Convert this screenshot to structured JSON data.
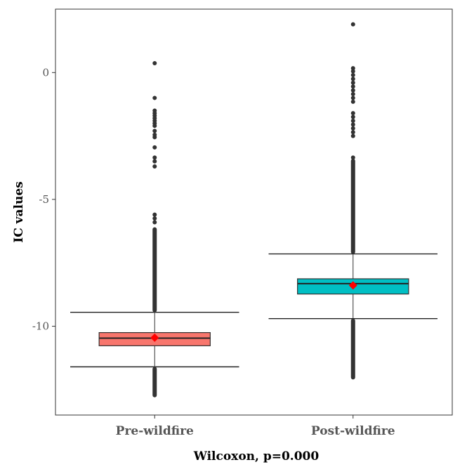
{
  "chart_data": {
    "type": "box",
    "title": "",
    "xlabel": "Wilcoxon, p=0.000",
    "ylabel": "IC values",
    "ylim": [
      -13.5,
      2.5
    ],
    "yticks": [
      0,
      -5,
      -10
    ],
    "ytick_labels": [
      "0",
      "-5",
      "-10"
    ],
    "categories": [
      "Pre-wildfire",
      "Post-wildfire"
    ],
    "grid": false,
    "series": [
      {
        "category": "Pre-wildfire",
        "color": "#f8766d",
        "q1": -10.77,
        "median": -10.47,
        "q3": -10.25,
        "whisker_low": -11.6,
        "whisker_high": -9.45,
        "mean": -10.45,
        "outliers_high_dense_range": [
          -9.45,
          -6.1
        ],
        "outliers_high": [
          0.37,
          -1.0,
          -1.5,
          -1.6,
          -1.7,
          -1.8,
          -1.9,
          -2.0,
          -2.1,
          -2.3,
          -2.45,
          -2.55,
          -2.95,
          -3.35,
          -3.5,
          -3.7,
          -5.6,
          -5.75,
          -5.9
        ],
        "outliers_low_dense_range": [
          -12.8,
          -11.6
        ]
      },
      {
        "category": "Post-wildfire",
        "color": "#00bfc4",
        "q1": -8.73,
        "median": -8.32,
        "q3": -8.13,
        "whisker_low": -9.7,
        "whisker_high": -7.15,
        "mean": -8.39,
        "outliers_high_dense_range": [
          -7.15,
          -3.4
        ],
        "outliers_high": [
          1.9,
          0.17,
          0.05,
          -0.1,
          -0.25,
          -0.4,
          -0.55,
          -0.7,
          -0.85,
          -1.0,
          -1.15,
          -1.6,
          -1.75,
          -1.9,
          -2.05,
          -2.2,
          -2.35,
          -2.5,
          -3.35
        ],
        "outliers_low_dense_range": [
          -12.1,
          -9.7
        ]
      }
    ],
    "mean_marker_color": "#ff0000"
  }
}
